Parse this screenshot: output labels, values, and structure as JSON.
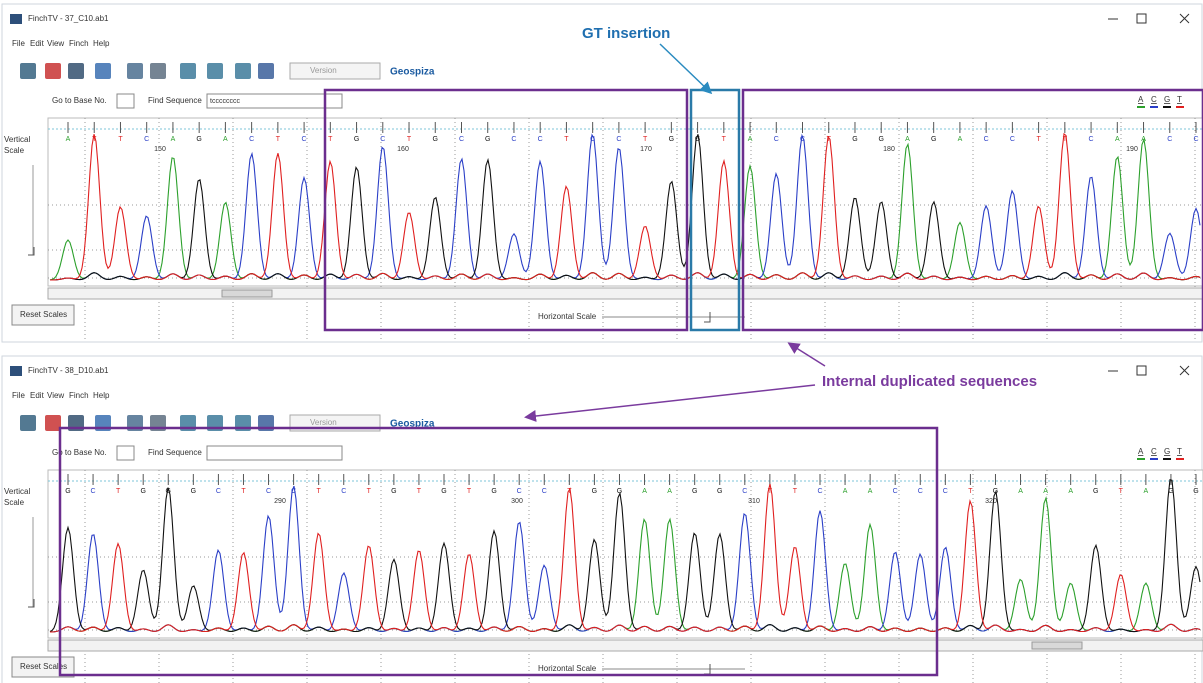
{
  "annotations": {
    "gt_insertion": "GT insertion",
    "duplicated": "Internal duplicated sequences"
  },
  "windows": [
    {
      "title": "FinchTV - 37_C10.ab1",
      "menu": [
        "File",
        "Edit",
        "View",
        "Finch",
        "Help"
      ],
      "version": "Version",
      "logo": "Geospiza",
      "go_to_base": "Go to Base No.",
      "find_sequence": "Find Sequence",
      "find_text": "tcccccccc",
      "base_legend": [
        "A",
        "C",
        "G",
        "T"
      ],
      "vertical_scale": [
        "Vertical",
        "Scale"
      ],
      "reset_scales": "Reset Scales",
      "horizontal_scale": "Horizontal Scale",
      "bases": [
        "A",
        "T",
        "T",
        "C",
        "A",
        "G",
        "A",
        "C",
        "T",
        "C",
        "T",
        "G",
        "C",
        "T",
        "G",
        "C",
        "G",
        "C",
        "C",
        "T",
        "C",
        "C",
        "T",
        "G",
        "G",
        "T",
        "A",
        "C",
        "C",
        "T",
        "G",
        "G",
        "A",
        "G",
        "A",
        "C",
        "C",
        "T",
        "T",
        "C",
        "A",
        "A",
        "C",
        "C"
      ],
      "positions": [
        150,
        160,
        170,
        180,
        190
      ]
    },
    {
      "title": "FinchTV - 38_D10.ab1",
      "menu": [
        "File",
        "Edit",
        "View",
        "Finch",
        "Help"
      ],
      "version": "Version",
      "logo": "Geospiza",
      "go_to_base": "Go to Base No.",
      "find_sequence": "Find Sequence",
      "base_legend": [
        "A",
        "C",
        "G",
        "T"
      ],
      "vertical_scale": [
        "Vertical",
        "Scale"
      ],
      "reset_scales": "Reset Scales",
      "horizontal_scale": "Horizontal Scale",
      "bases": [
        "G",
        "C",
        "T",
        "G",
        "G",
        "G",
        "C",
        "T",
        "C",
        "C",
        "T",
        "C",
        "T",
        "G",
        "T",
        "G",
        "T",
        "G",
        "C",
        "C",
        "T",
        "G",
        "G",
        "A",
        "A",
        "G",
        "G",
        "C",
        "T",
        "T",
        "C",
        "A",
        "A",
        "C",
        "C",
        "C",
        "T",
        "G",
        "A",
        "A",
        "A",
        "G",
        "T",
        "A",
        "G",
        "G"
      ],
      "positions": [
        290,
        300,
        310,
        320
      ]
    }
  ]
}
